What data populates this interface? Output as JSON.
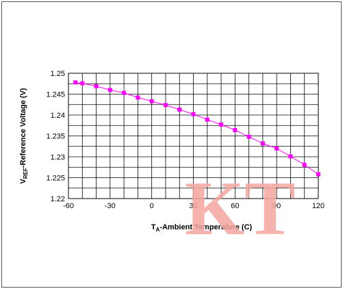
{
  "chart_data": {
    "type": "line",
    "xlabel_main": "T",
    "xlabel_sub": "A",
    "xlabel_rest": "-Ambient Temperature (C)",
    "ylabel_main": "V",
    "ylabel_sub": "REF",
    "ylabel_rest": "-Reference Voltage (V)",
    "xlim": [
      -60,
      120
    ],
    "ylim": [
      1.22,
      1.25
    ],
    "x_ticks": [
      -60,
      -30,
      0,
      30,
      60,
      90,
      120
    ],
    "x_tick_labels": [
      "-60",
      "-30",
      "0",
      "30",
      "60",
      "90",
      "120"
    ],
    "y_ticks": [
      1.22,
      1.225,
      1.23,
      1.235,
      1.24,
      1.245,
      1.25
    ],
    "y_tick_labels": [
      "1.22",
      "1.225",
      "1.23",
      "1.235",
      "1.24",
      "1.245",
      "1.25"
    ],
    "x_grid_step": 10,
    "y_grid_step": 0.0025,
    "series": [
      {
        "color": "#ff00ff",
        "x": [
          -55,
          -50,
          -40,
          -30,
          -20,
          -10,
          0,
          10,
          20,
          30,
          40,
          50,
          60,
          70,
          80,
          90,
          100,
          110,
          120
        ],
        "y": [
          1.2478,
          1.2476,
          1.2469,
          1.246,
          1.2453,
          1.2442,
          1.2433,
          1.2424,
          1.2413,
          1.2402,
          1.2389,
          1.2377,
          1.2364,
          1.2348,
          1.2332,
          1.232,
          1.2301,
          1.2281,
          1.2258
        ]
      }
    ]
  },
  "watermark": {
    "text": "KT",
    "color": "#f4a6a0"
  }
}
